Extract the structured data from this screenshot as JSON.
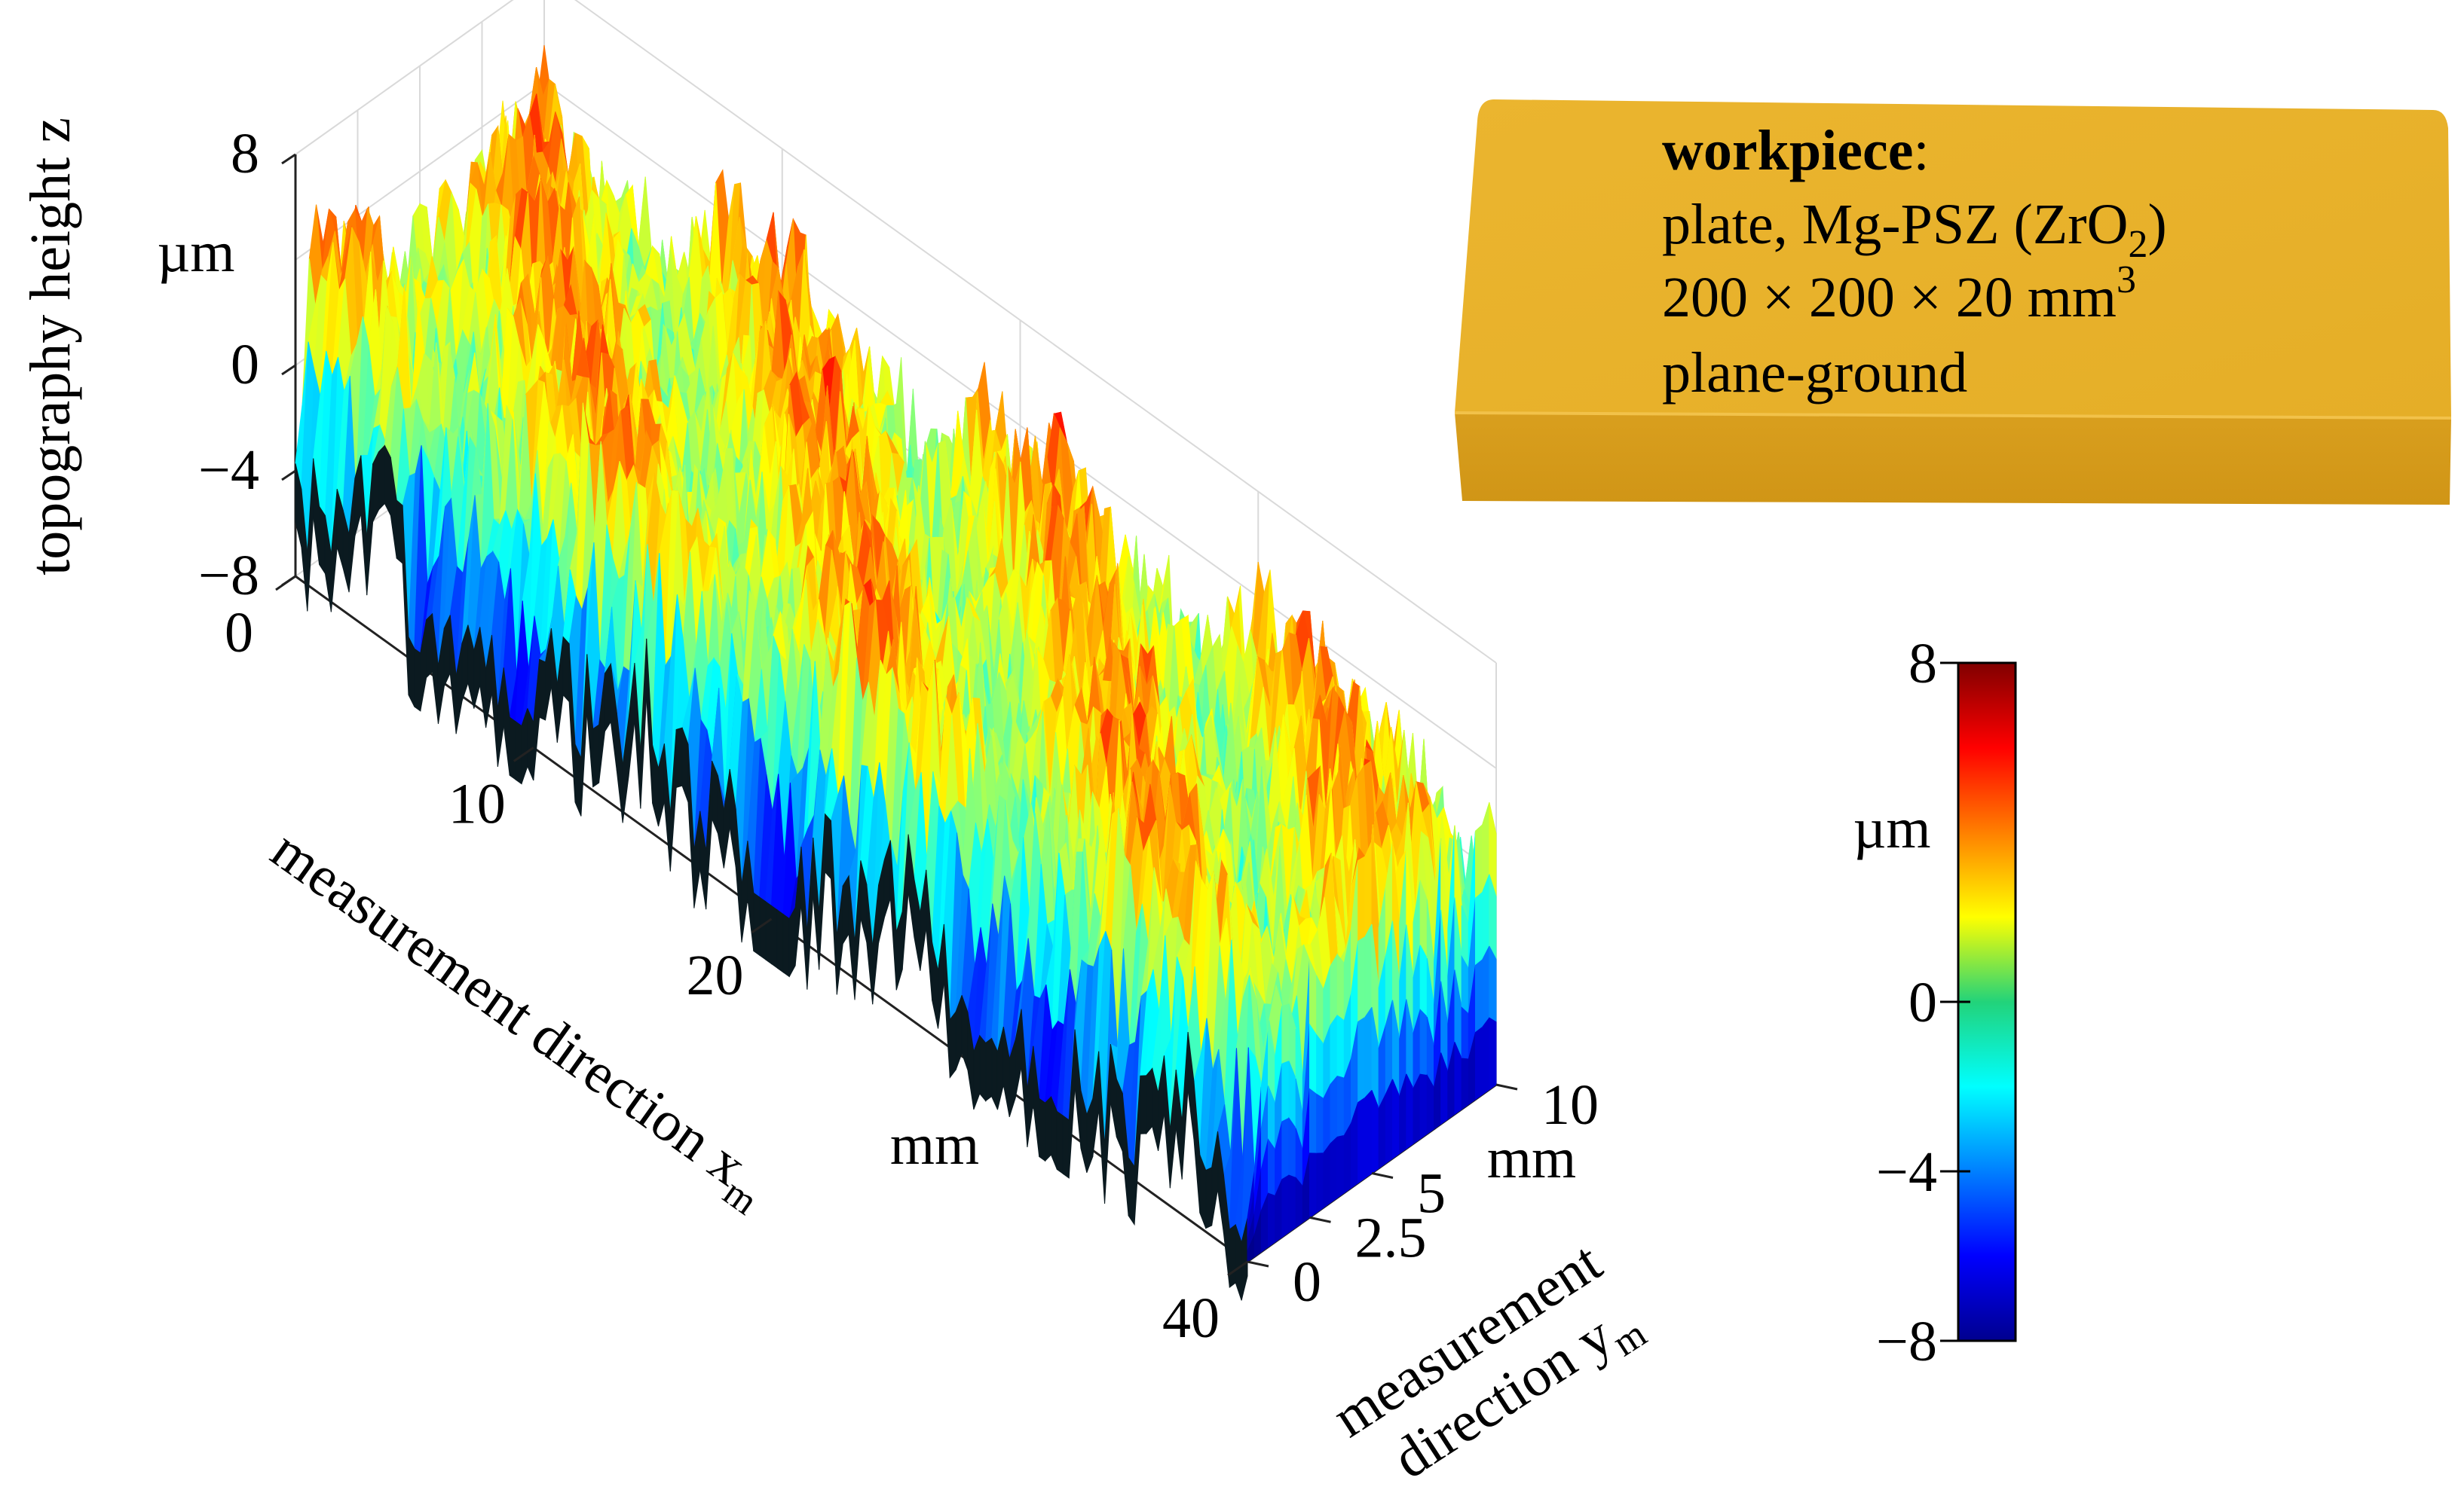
{
  "chart_data": [
    {
      "type": "surface",
      "z_axis": {
        "label": "topography height z",
        "unit": "µm",
        "ticks": [
          8,
          0,
          -4,
          -8
        ],
        "range": [
          -8,
          8
        ]
      },
      "x_axis": {
        "label_main": "measurement direction x",
        "label_sub": "m",
        "unit": "mm",
        "ticks": [
          0,
          10,
          20,
          40
        ],
        "range": [
          0,
          40
        ]
      },
      "y_axis": {
        "label_line1": "measurement",
        "label_line2_main": "direction y",
        "label_line2_sub": "m",
        "unit": "mm",
        "ticks": [
          0,
          2.5,
          5,
          10
        ],
        "range": [
          0,
          10
        ]
      },
      "surface": {
        "mean_height": 0,
        "description_visible": "rough ground surface, heights mostly between -8 and 8 µm"
      },
      "grid": true
    },
    {
      "type": "colorbar",
      "unit": "µm",
      "ticks": [
        8,
        0,
        -4,
        -8
      ],
      "range": [
        -8,
        8
      ],
      "colormap": "jet"
    }
  ],
  "workpiece": {
    "heading": "workpiece",
    "heading_suffix": ":",
    "line1_prefix": "plate, Mg-PSZ (ZrO",
    "line1_sub": "2",
    "line1_suffix": ")",
    "line2_main": "200 × 200 × 20 mm",
    "line2_sup": "3",
    "line3": "plane-ground",
    "color": "#E8B12C"
  }
}
